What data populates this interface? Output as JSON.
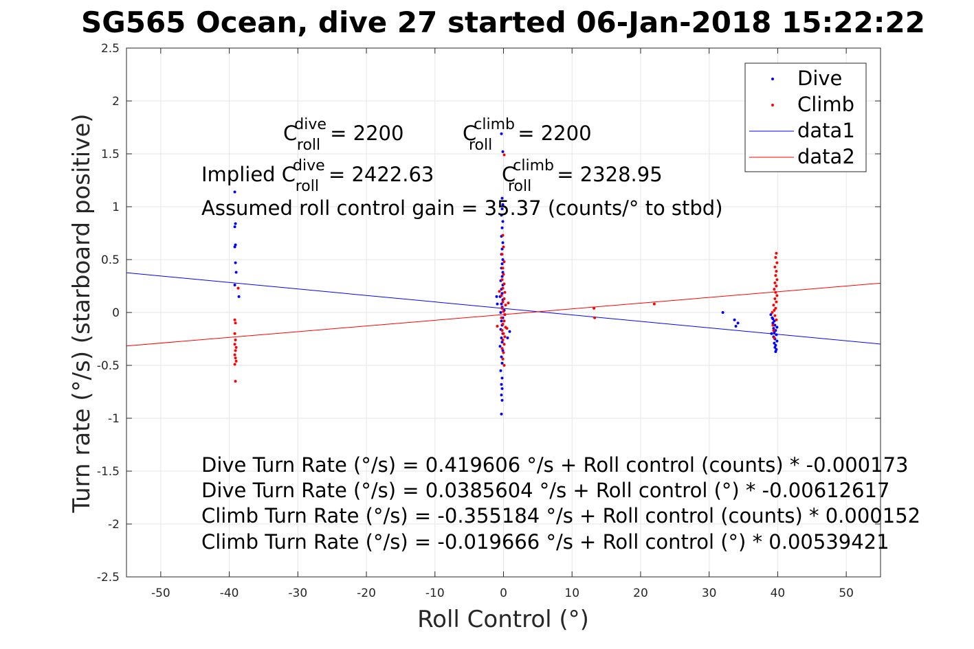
{
  "title": "SG565 Ocean, dive 27 started 06-Jan-2018 15:22:22",
  "colors": {
    "dive": "#0000ff",
    "climb": "#ff0000",
    "fit_dive": "#0000ff",
    "fit_climb": "#ff0000",
    "grid": "#e6e6e6",
    "axis": "#262626"
  },
  "chart_data": {
    "type": "scatter",
    "xlabel": "Roll Control (°)",
    "ylabel": "Turn rate (°/s) (starboard positive)",
    "xlim": [
      -55,
      55
    ],
    "ylim": [
      -2.5,
      2.5
    ],
    "xticks": [
      -50,
      -40,
      -30,
      -20,
      -10,
      0,
      10,
      20,
      30,
      40,
      50
    ],
    "yticks": [
      -2.5,
      -2,
      -1.5,
      -1,
      -0.5,
      0,
      0.5,
      1,
      1.5,
      2,
      2.5
    ],
    "xtick_labels": [
      "-50",
      "-40",
      "-30",
      "-20",
      "-10",
      "0",
      "10",
      "20",
      "30",
      "40",
      "50"
    ],
    "ytick_labels": [
      "-2.5",
      "-2",
      "-1.5",
      "-1",
      "-0.5",
      "0",
      "0.5",
      "1",
      "1.5",
      "2",
      "2.5"
    ],
    "grid": true,
    "legend": {
      "placement": "top-right",
      "entries": [
        "Dive",
        "Climb",
        "data1",
        "data2"
      ]
    },
    "series": [
      {
        "name": "Dive",
        "kind": "points",
        "color": "#0000ff",
        "points": [
          [
            -39.2,
            1.14
          ],
          [
            -39.1,
            0.84
          ],
          [
            -39.2,
            0.81
          ],
          [
            -39.1,
            0.64
          ],
          [
            -39.2,
            0.62
          ],
          [
            -39.1,
            0.47
          ],
          [
            -39.0,
            0.38
          ],
          [
            -39.2,
            0.26
          ],
          [
            -38.6,
            0.15
          ],
          [
            -0.3,
            1.69
          ],
          [
            -0.1,
            1.52
          ],
          [
            -0.2,
            1.08
          ],
          [
            -0.1,
            1.02
          ],
          [
            -0.2,
            0.98
          ],
          [
            -0.3,
            0.92
          ],
          [
            -0.1,
            0.86
          ],
          [
            -0.2,
            0.8
          ],
          [
            -0.3,
            0.72
          ],
          [
            -0.1,
            0.66
          ],
          [
            -0.2,
            0.6
          ],
          [
            -0.3,
            0.55
          ],
          [
            -0.1,
            0.5
          ],
          [
            -0.2,
            0.46
          ],
          [
            -0.3,
            0.42
          ],
          [
            -0.1,
            0.38
          ],
          [
            -0.2,
            0.34
          ],
          [
            -0.4,
            0.3
          ],
          [
            -0.1,
            0.26
          ],
          [
            -0.3,
            0.22
          ],
          [
            -0.2,
            0.18
          ],
          [
            -0.5,
            0.15
          ],
          [
            -0.1,
            0.12
          ],
          [
            -0.3,
            0.08
          ],
          [
            -0.2,
            0.05
          ],
          [
            0.1,
            0.02
          ],
          [
            -0.4,
            0.0
          ],
          [
            0.2,
            -0.02
          ],
          [
            -0.1,
            -0.05
          ],
          [
            -0.3,
            -0.08
          ],
          [
            -0.2,
            -0.12
          ],
          [
            -0.4,
            -0.16
          ],
          [
            -0.1,
            -0.2
          ],
          [
            -0.3,
            -0.24
          ],
          [
            -0.2,
            -0.28
          ],
          [
            -0.5,
            -0.32
          ],
          [
            -0.1,
            -0.36
          ],
          [
            -0.3,
            -0.42
          ],
          [
            -0.2,
            -0.48
          ],
          [
            -0.4,
            -0.55
          ],
          [
            -0.2,
            -0.62
          ],
          [
            -0.3,
            -0.68
          ],
          [
            -0.2,
            -0.72
          ],
          [
            -0.3,
            -0.78
          ],
          [
            -0.2,
            -0.83
          ],
          [
            -0.3,
            -0.96
          ],
          [
            -1.0,
            0.15
          ],
          [
            0.9,
            -0.18
          ],
          [
            0.6,
            -0.24
          ],
          [
            -0.9,
            0.08
          ],
          [
            32.0,
            0.0
          ],
          [
            33.7,
            -0.07
          ],
          [
            34.2,
            -0.1
          ],
          [
            33.9,
            -0.13
          ],
          [
            39.0,
            -0.02
          ],
          [
            39.2,
            -0.05
          ],
          [
            39.5,
            -0.08
          ],
          [
            39.3,
            -0.1
          ],
          [
            39.6,
            -0.12
          ],
          [
            39.4,
            -0.15
          ],
          [
            39.7,
            -0.17
          ],
          [
            39.5,
            -0.19
          ],
          [
            39.8,
            -0.21
          ],
          [
            39.4,
            -0.23
          ],
          [
            39.6,
            -0.25
          ],
          [
            39.9,
            -0.27
          ],
          [
            39.5,
            -0.29
          ],
          [
            39.7,
            -0.31
          ],
          [
            39.6,
            -0.33
          ],
          [
            39.8,
            -0.35
          ],
          [
            39.7,
            -0.37
          ],
          [
            39.3,
            -0.06
          ],
          [
            39.9,
            -0.14
          ],
          [
            39.1,
            -0.2
          ]
        ]
      },
      {
        "name": "Climb",
        "kind": "points",
        "color": "#ff0000",
        "points": [
          [
            -39.2,
            -0.07
          ],
          [
            -39.1,
            -0.1
          ],
          [
            -39.2,
            -0.2
          ],
          [
            -39.1,
            -0.26
          ],
          [
            -39.2,
            -0.3
          ],
          [
            -39.0,
            -0.33
          ],
          [
            -39.1,
            -0.36
          ],
          [
            -39.2,
            -0.4
          ],
          [
            -39.1,
            -0.43
          ],
          [
            -39.0,
            -0.46
          ],
          [
            -39.2,
            -0.49
          ],
          [
            -39.1,
            -0.65
          ],
          [
            -38.7,
            0.23
          ],
          [
            0.1,
            1.49
          ],
          [
            -0.1,
            0.73
          ],
          [
            0.0,
            0.62
          ],
          [
            -0.2,
            0.55
          ],
          [
            0.1,
            0.48
          ],
          [
            -0.1,
            0.42
          ],
          [
            0.0,
            0.36
          ],
          [
            -0.2,
            0.31
          ],
          [
            0.1,
            0.27
          ],
          [
            -0.1,
            0.23
          ],
          [
            0.2,
            0.19
          ],
          [
            -0.3,
            0.16
          ],
          [
            0.1,
            0.13
          ],
          [
            -0.1,
            0.1
          ],
          [
            0.3,
            0.07
          ],
          [
            -0.2,
            0.04
          ],
          [
            0.0,
            0.01
          ],
          [
            0.2,
            -0.02
          ],
          [
            -0.3,
            -0.05
          ],
          [
            0.1,
            -0.08
          ],
          [
            -0.1,
            -0.11
          ],
          [
            0.3,
            -0.14
          ],
          [
            -0.2,
            -0.17
          ],
          [
            0.0,
            -0.2
          ],
          [
            0.2,
            -0.23
          ],
          [
            -0.1,
            -0.26
          ],
          [
            0.1,
            -0.3
          ],
          [
            -0.2,
            -0.34
          ],
          [
            0.0,
            -0.38
          ],
          [
            -0.1,
            -0.44
          ],
          [
            0.1,
            -0.5
          ],
          [
            -0.9,
            -0.13
          ],
          [
            0.7,
            0.09
          ],
          [
            -0.6,
            0.2
          ],
          [
            0.5,
            -0.15
          ],
          [
            13.2,
            0.04
          ],
          [
            13.3,
            -0.05
          ],
          [
            22.0,
            0.08
          ],
          [
            39.8,
            0.56
          ],
          [
            39.7,
            0.52
          ],
          [
            39.9,
            0.47
          ],
          [
            39.6,
            0.43
          ],
          [
            39.8,
            0.39
          ],
          [
            39.7,
            0.35
          ],
          [
            39.9,
            0.31
          ],
          [
            39.6,
            0.28
          ],
          [
            39.8,
            0.25
          ],
          [
            39.5,
            0.22
          ],
          [
            39.7,
            0.19
          ],
          [
            39.9,
            0.16
          ],
          [
            39.6,
            0.13
          ],
          [
            39.8,
            0.1
          ],
          [
            39.4,
            0.07
          ],
          [
            39.7,
            0.04
          ],
          [
            39.5,
            0.02
          ],
          [
            39.2,
            0.0
          ],
          [
            39.6,
            -0.03
          ],
          [
            39.8,
            -0.07
          ],
          [
            39.3,
            -0.12
          ],
          [
            39.4,
            -0.17
          ],
          [
            39.5,
            -0.24
          ]
        ]
      },
      {
        "name": "data1",
        "kind": "line",
        "color": "#0000ff",
        "x": [
          -55,
          55
        ],
        "y": [
          0.3755,
          -0.2984
        ]
      },
      {
        "name": "data2",
        "kind": "line",
        "color": "#ff0000",
        "x": [
          -55,
          55
        ],
        "y": [
          -0.3164,
          0.277
        ]
      }
    ],
    "annotations": {
      "c_roll_dive": "= 2200",
      "c_roll_climb": "= 2200",
      "implied_prefix": "Implied C",
      "implied_dive": "= 2422.63",
      "implied_climb": "= 2328.95",
      "gain": "Assumed roll control gain = 35.37 (counts/° to stbd)",
      "eq_lines": [
        "Dive Turn Rate (°/s) = 0.419606 °/s + Roll control (counts) * -0.000173",
        "Dive Turn Rate (°/s) = 0.0385604 °/s + Roll control (°) * -0.00612617",
        "Climb Turn Rate (°/s) = -0.355184 °/s + Roll control (counts) * 0.000152",
        "Climb Turn Rate (°/s) = -0.019666 °/s + Roll control (°) * 0.00539421"
      ],
      "c_letter": "C",
      "sub_roll": "roll",
      "sup_dive": "dive",
      "sup_climb": "climb"
    }
  }
}
